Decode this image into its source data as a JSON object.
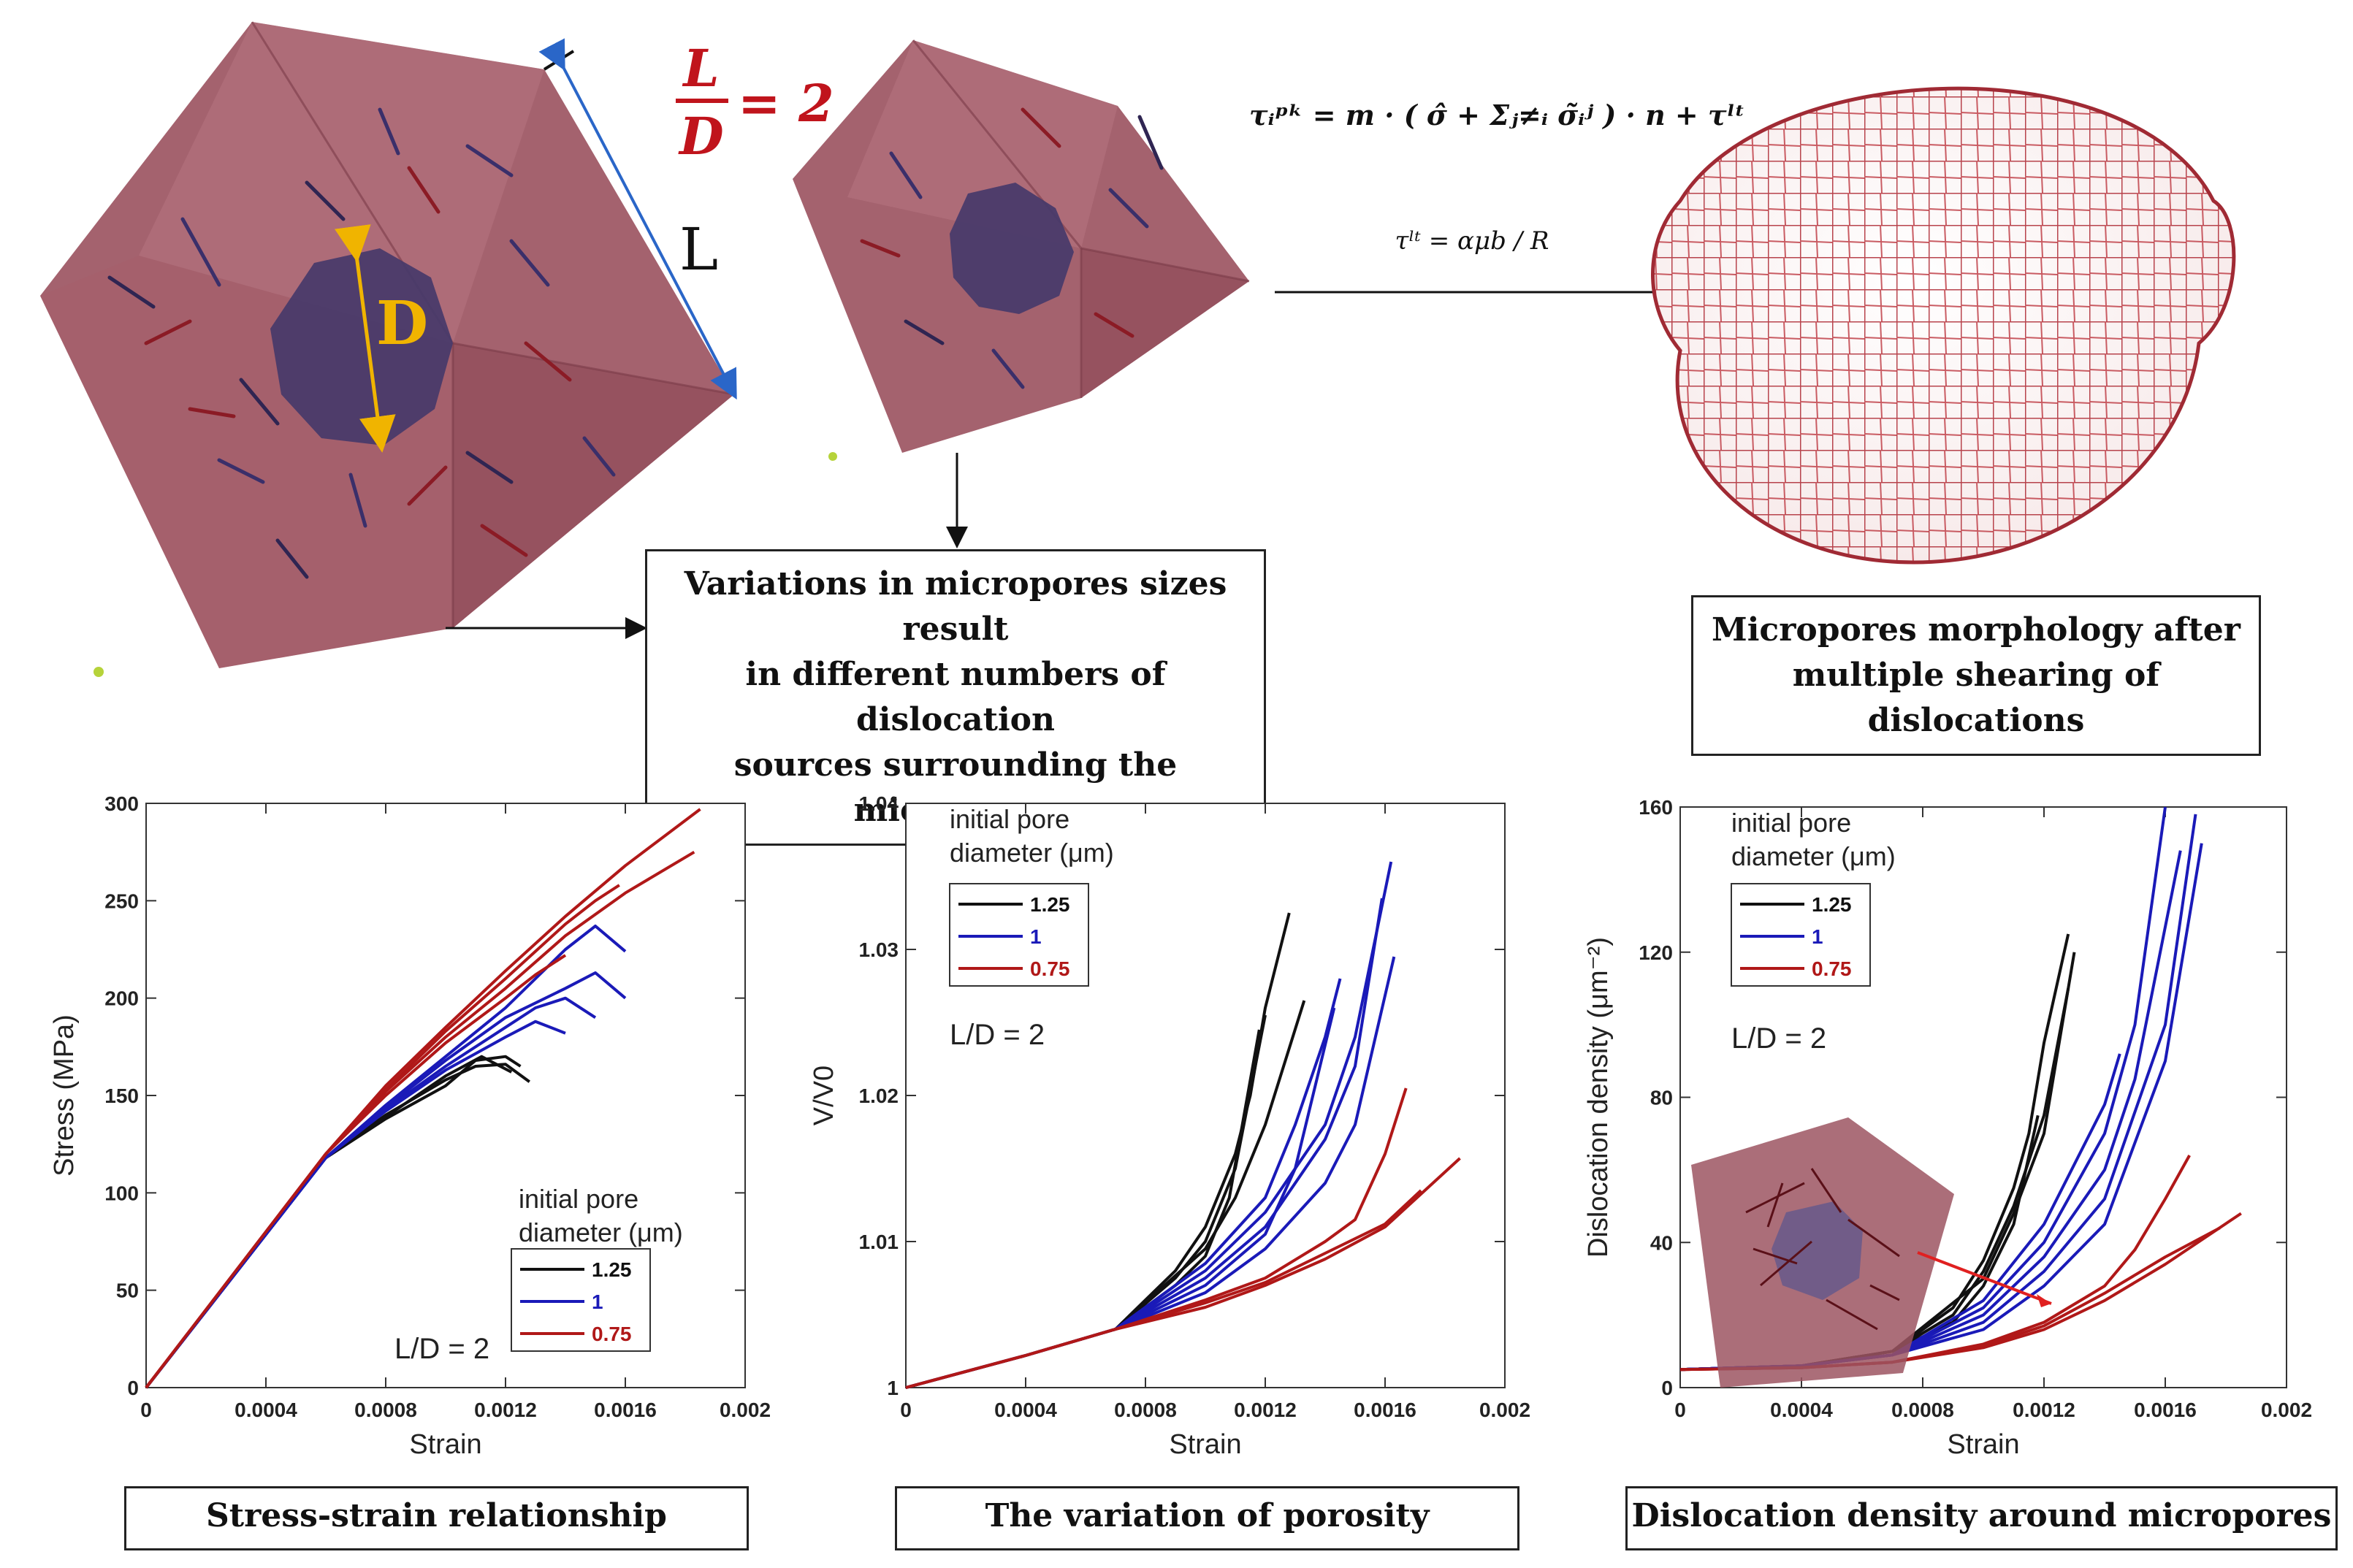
{
  "schematic": {
    "ratio_numerator": "L",
    "ratio_denominator": "D",
    "ratio_rhs": "= 2",
    "label_L": "L",
    "label_D": "D",
    "equation_pk": "τᵢᵖᵏ = m · ( σ̂ + Σⱼ≠ᵢ σ̃ᵢʲ ) · n + τˡᵗ",
    "equation_lt": "τˡᵗ = αμb / R",
    "caption_sizes_lines": [
      "Variations in micropores sizes result",
      "in different numbers of dislocation",
      "sources surrounding the micropores"
    ],
    "caption_morphology_lines": [
      "Micropores morphology after",
      "multiple shearing of dislocations"
    ]
  },
  "colors": {
    "cube": "#9c5562",
    "pore": "#47396a",
    "ratio": "#c0141c",
    "series_125": "#111111",
    "series_1": "#1a1ab8",
    "series_075": "#b01818",
    "dim_line": "#2a66c8",
    "d_line": "#f0b400"
  },
  "captions": {
    "stress_strain": "Stress-strain relationship",
    "porosity": "The variation of porosity",
    "dislocation": "Dislocation density around micropores"
  },
  "chart_data": [
    {
      "type": "line",
      "title": "",
      "xlabel": "Strain",
      "ylabel": "Stress (MPa)",
      "xlim": [
        0,
        0.002
      ],
      "ylim": [
        0,
        300
      ],
      "xticks": [
        "0",
        "0.0004",
        "0.0008",
        "0.0012",
        "0.0016",
        "0.002"
      ],
      "yticks": [
        "0",
        "50",
        "100",
        "150",
        "200",
        "250",
        "300"
      ],
      "legend_title_lines": [
        "initial pore",
        "diameter (μm)"
      ],
      "annotation": "L/D = 2",
      "series": [
        {
          "name": "1.25",
          "x": [
            0,
            0.0006,
            0.0008,
            0.001,
            0.0011,
            0.0012,
            0.00128
          ],
          "y": [
            0,
            118,
            140,
            158,
            165,
            166,
            157
          ]
        },
        {
          "name": "1.25",
          "x": [
            0,
            0.0006,
            0.0008,
            0.001,
            0.0011,
            0.0012,
            0.00125
          ],
          "y": [
            0,
            118,
            138,
            155,
            168,
            170,
            165
          ]
        },
        {
          "name": "1.25",
          "x": [
            0,
            0.0006,
            0.0008,
            0.001,
            0.00112,
            0.00122
          ],
          "y": [
            0,
            118,
            139,
            160,
            170,
            162
          ]
        },
        {
          "name": "1",
          "x": [
            0,
            0.0006,
            0.0008,
            0.001,
            0.0012,
            0.0014,
            0.0015,
            0.0016
          ],
          "y": [
            0,
            118,
            145,
            170,
            195,
            225,
            237,
            224
          ]
        },
        {
          "name": "1",
          "x": [
            0,
            0.0006,
            0.0008,
            0.001,
            0.0012,
            0.0014,
            0.0015,
            0.0016
          ],
          "y": [
            0,
            118,
            144,
            168,
            190,
            205,
            213,
            200
          ]
        },
        {
          "name": "1",
          "x": [
            0,
            0.0006,
            0.0008,
            0.001,
            0.0012,
            0.0013,
            0.0014,
            0.0015
          ],
          "y": [
            0,
            118,
            143,
            165,
            185,
            195,
            200,
            190
          ]
        },
        {
          "name": "1",
          "x": [
            0,
            0.0006,
            0.0008,
            0.001,
            0.0012,
            0.0013,
            0.0014
          ],
          "y": [
            0,
            118,
            142,
            163,
            180,
            188,
            182
          ]
        },
        {
          "name": "0.75",
          "x": [
            0,
            0.0006,
            0.0008,
            0.001,
            0.0012,
            0.0014,
            0.0016,
            0.00185
          ],
          "y": [
            0,
            120,
            155,
            185,
            214,
            242,
            268,
            297
          ]
        },
        {
          "name": "0.75",
          "x": [
            0,
            0.0006,
            0.0008,
            0.001,
            0.0012,
            0.0014,
            0.0016,
            0.00183
          ],
          "y": [
            0,
            120,
            152,
            180,
            205,
            232,
            254,
            275
          ]
        },
        {
          "name": "0.75",
          "x": [
            0,
            0.0006,
            0.0008,
            0.001,
            0.0012,
            0.0014,
            0.0015,
            0.00158
          ],
          "y": [
            0,
            120,
            153,
            183,
            210,
            238,
            250,
            258
          ]
        },
        {
          "name": "0.75",
          "x": [
            0,
            0.0006,
            0.0008,
            0.001,
            0.0012,
            0.0013,
            0.0014
          ],
          "y": [
            0,
            120,
            150,
            177,
            200,
            212,
            222
          ]
        }
      ]
    },
    {
      "type": "line",
      "title": "",
      "xlabel": "Strain",
      "ylabel": "V/V0",
      "xlim": [
        0,
        0.002
      ],
      "ylim": [
        1,
        1.04
      ],
      "xticks": [
        "0",
        "0.0004",
        "0.0008",
        "0.0012",
        "0.0016",
        "0.002"
      ],
      "yticks": [
        "1",
        "1.01",
        "1.02",
        "1.03",
        "1.04"
      ],
      "legend_title_lines": [
        "initial pore",
        "diameter (μm)"
      ],
      "annotation": "L/D = 2",
      "series": [
        {
          "name": "1.25",
          "x": [
            0,
            0.0004,
            0.0007,
            0.0009,
            0.001,
            0.0011,
            0.00115,
            0.0012,
            0.00128
          ],
          "y": [
            1,
            1.0022,
            1.004,
            1.008,
            1.011,
            1.016,
            1.02,
            1.026,
            1.0325
          ]
        },
        {
          "name": "1.25",
          "x": [
            0,
            0.0004,
            0.0007,
            0.0009,
            0.001,
            0.0011,
            0.0012
          ],
          "y": [
            1,
            1.0022,
            1.004,
            1.0075,
            1.01,
            1.015,
            1.0255
          ]
        },
        {
          "name": "1.25",
          "x": [
            0,
            0.0004,
            0.0007,
            0.0009,
            0.001,
            0.00108,
            0.00118
          ],
          "y": [
            1,
            1.0022,
            1.004,
            1.007,
            1.009,
            1.013,
            1.0245
          ]
        },
        {
          "name": "1.25",
          "x": [
            0,
            0.0004,
            0.0007,
            0.001,
            0.0011,
            0.0012,
            0.00133
          ],
          "y": [
            1,
            1.0022,
            1.004,
            1.0095,
            1.013,
            1.018,
            1.0265
          ]
        },
        {
          "name": "1",
          "x": [
            0,
            0.0004,
            0.0007,
            0.001,
            0.0012,
            0.0014,
            0.0015,
            0.00162
          ],
          "y": [
            1,
            1.0022,
            1.004,
            1.008,
            1.012,
            1.018,
            1.024,
            1.036
          ]
        },
        {
          "name": "1",
          "x": [
            0,
            0.0004,
            0.0007,
            0.001,
            0.0012,
            0.0014,
            0.0015,
            0.00159
          ],
          "y": [
            1,
            1.0022,
            1.004,
            1.0075,
            1.011,
            1.017,
            1.022,
            1.0335
          ]
        },
        {
          "name": "1",
          "x": [
            0,
            0.0004,
            0.0007,
            0.001,
            0.0012,
            0.0013,
            0.0014,
            0.00145
          ],
          "y": [
            1,
            1.0022,
            1.004,
            1.0085,
            1.013,
            1.018,
            1.024,
            1.028
          ]
        },
        {
          "name": "1",
          "x": [
            0,
            0.0004,
            0.0007,
            0.001,
            0.0012,
            0.0014,
            0.0015,
            0.00163
          ],
          "y": [
            1,
            1.0022,
            1.004,
            1.0065,
            1.0095,
            1.014,
            1.018,
            1.0295
          ]
        },
        {
          "name": "1",
          "x": [
            0,
            0.0004,
            0.0007,
            0.001,
            0.0012,
            0.0013,
            0.00143
          ],
          "y": [
            1,
            1.0022,
            1.004,
            1.007,
            1.0105,
            1.015,
            1.026
          ]
        },
        {
          "name": "0.75",
          "x": [
            0,
            0.0004,
            0.0007,
            0.001,
            0.0012,
            0.0014,
            0.0015,
            0.0016,
            0.00167
          ],
          "y": [
            1,
            1.0022,
            1.004,
            1.006,
            1.0075,
            1.01,
            1.0115,
            1.016,
            1.0205
          ]
        },
        {
          "name": "0.75",
          "x": [
            0,
            0.0004,
            0.0007,
            0.001,
            0.0012,
            0.0014,
            0.0016,
            0.00185
          ],
          "y": [
            1,
            1.0022,
            1.004,
            1.0055,
            1.007,
            1.0088,
            1.011,
            1.0157
          ]
        },
        {
          "name": "0.75",
          "x": [
            0,
            0.0004,
            0.0007,
            0.001,
            0.0012,
            0.0014,
            0.0016,
            0.00172
          ],
          "y": [
            1,
            1.0022,
            1.004,
            1.0058,
            1.0072,
            1.0092,
            1.0112,
            1.0135
          ]
        }
      ]
    },
    {
      "type": "line",
      "title": "",
      "xlabel": "Strain",
      "ylabel": "Dislocation density (μm⁻²)",
      "xlim": [
        0,
        0.002
      ],
      "ylim": [
        0,
        160
      ],
      "xticks": [
        "0",
        "0.0004",
        "0.0008",
        "0.0012",
        "0.0016",
        "0.002"
      ],
      "yticks": [
        "0",
        "40",
        "80",
        "120",
        "160"
      ],
      "legend_title_lines": [
        "initial pore",
        "diameter (μm)"
      ],
      "annotation": "L/D = 2",
      "series": [
        {
          "name": "1.25",
          "x": [
            0,
            0.0004,
            0.0007,
            0.0009,
            0.001,
            0.0011,
            0.00115,
            0.0012,
            0.00128
          ],
          "y": [
            5,
            6,
            10,
            22,
            35,
            55,
            70,
            95,
            125
          ]
        },
        {
          "name": "1.25",
          "x": [
            0,
            0.0004,
            0.0007,
            0.0009,
            0.001,
            0.0011,
            0.0012,
            0.00128
          ],
          "y": [
            5,
            6,
            10,
            20,
            32,
            50,
            75,
            110
          ]
        },
        {
          "name": "1.25",
          "x": [
            0,
            0.0004,
            0.0007,
            0.0009,
            0.001,
            0.0011,
            0.00118
          ],
          "y": [
            5,
            6,
            10,
            18,
            28,
            45,
            75
          ]
        },
        {
          "name": "1.25",
          "x": [
            0,
            0.0004,
            0.0007,
            0.001,
            0.0011,
            0.0012,
            0.0013
          ],
          "y": [
            5,
            6,
            10,
            30,
            48,
            70,
            120
          ]
        },
        {
          "name": "1",
          "x": [
            0,
            0.0004,
            0.0007,
            0.001,
            0.0012,
            0.0014,
            0.0015,
            0.0016
          ],
          "y": [
            5,
            6,
            9,
            22,
            40,
            70,
            100,
            160
          ]
        },
        {
          "name": "1",
          "x": [
            0,
            0.0004,
            0.0007,
            0.001,
            0.0012,
            0.0014,
            0.0015,
            0.00165
          ],
          "y": [
            5,
            6,
            9,
            20,
            36,
            60,
            85,
            148
          ]
        },
        {
          "name": "1",
          "x": [
            0,
            0.0004,
            0.0007,
            0.001,
            0.0012,
            0.0014,
            0.0016,
            0.0017
          ],
          "y": [
            5,
            6,
            9,
            18,
            32,
            52,
            100,
            158
          ]
        },
        {
          "name": "1",
          "x": [
            0,
            0.0004,
            0.0007,
            0.001,
            0.0012,
            0.0014,
            0.0016,
            0.00172
          ],
          "y": [
            5,
            6,
            9,
            16,
            28,
            45,
            90,
            150
          ]
        },
        {
          "name": "1",
          "x": [
            0,
            0.0004,
            0.0007,
            0.001,
            0.0012,
            0.0014,
            0.00145
          ],
          "y": [
            5,
            6,
            9,
            24,
            45,
            78,
            92
          ]
        },
        {
          "name": "0.75",
          "x": [
            0,
            0.0004,
            0.0007,
            0.001,
            0.0012,
            0.0014,
            0.0015,
            0.0016,
            0.00168
          ],
          "y": [
            5,
            5.5,
            7,
            12,
            18,
            28,
            38,
            52,
            64
          ]
        },
        {
          "name": "0.75",
          "x": [
            0,
            0.0004,
            0.0007,
            0.001,
            0.0012,
            0.0014,
            0.0016,
            0.00185
          ],
          "y": [
            5,
            5.5,
            7,
            11,
            16,
            24,
            34,
            48
          ]
        },
        {
          "name": "0.75",
          "x": [
            0,
            0.0004,
            0.0007,
            0.001,
            0.0012,
            0.0014,
            0.0016,
            0.00178
          ],
          "y": [
            5,
            5.5,
            7,
            11.5,
            17,
            26,
            36,
            44
          ]
        }
      ]
    }
  ]
}
